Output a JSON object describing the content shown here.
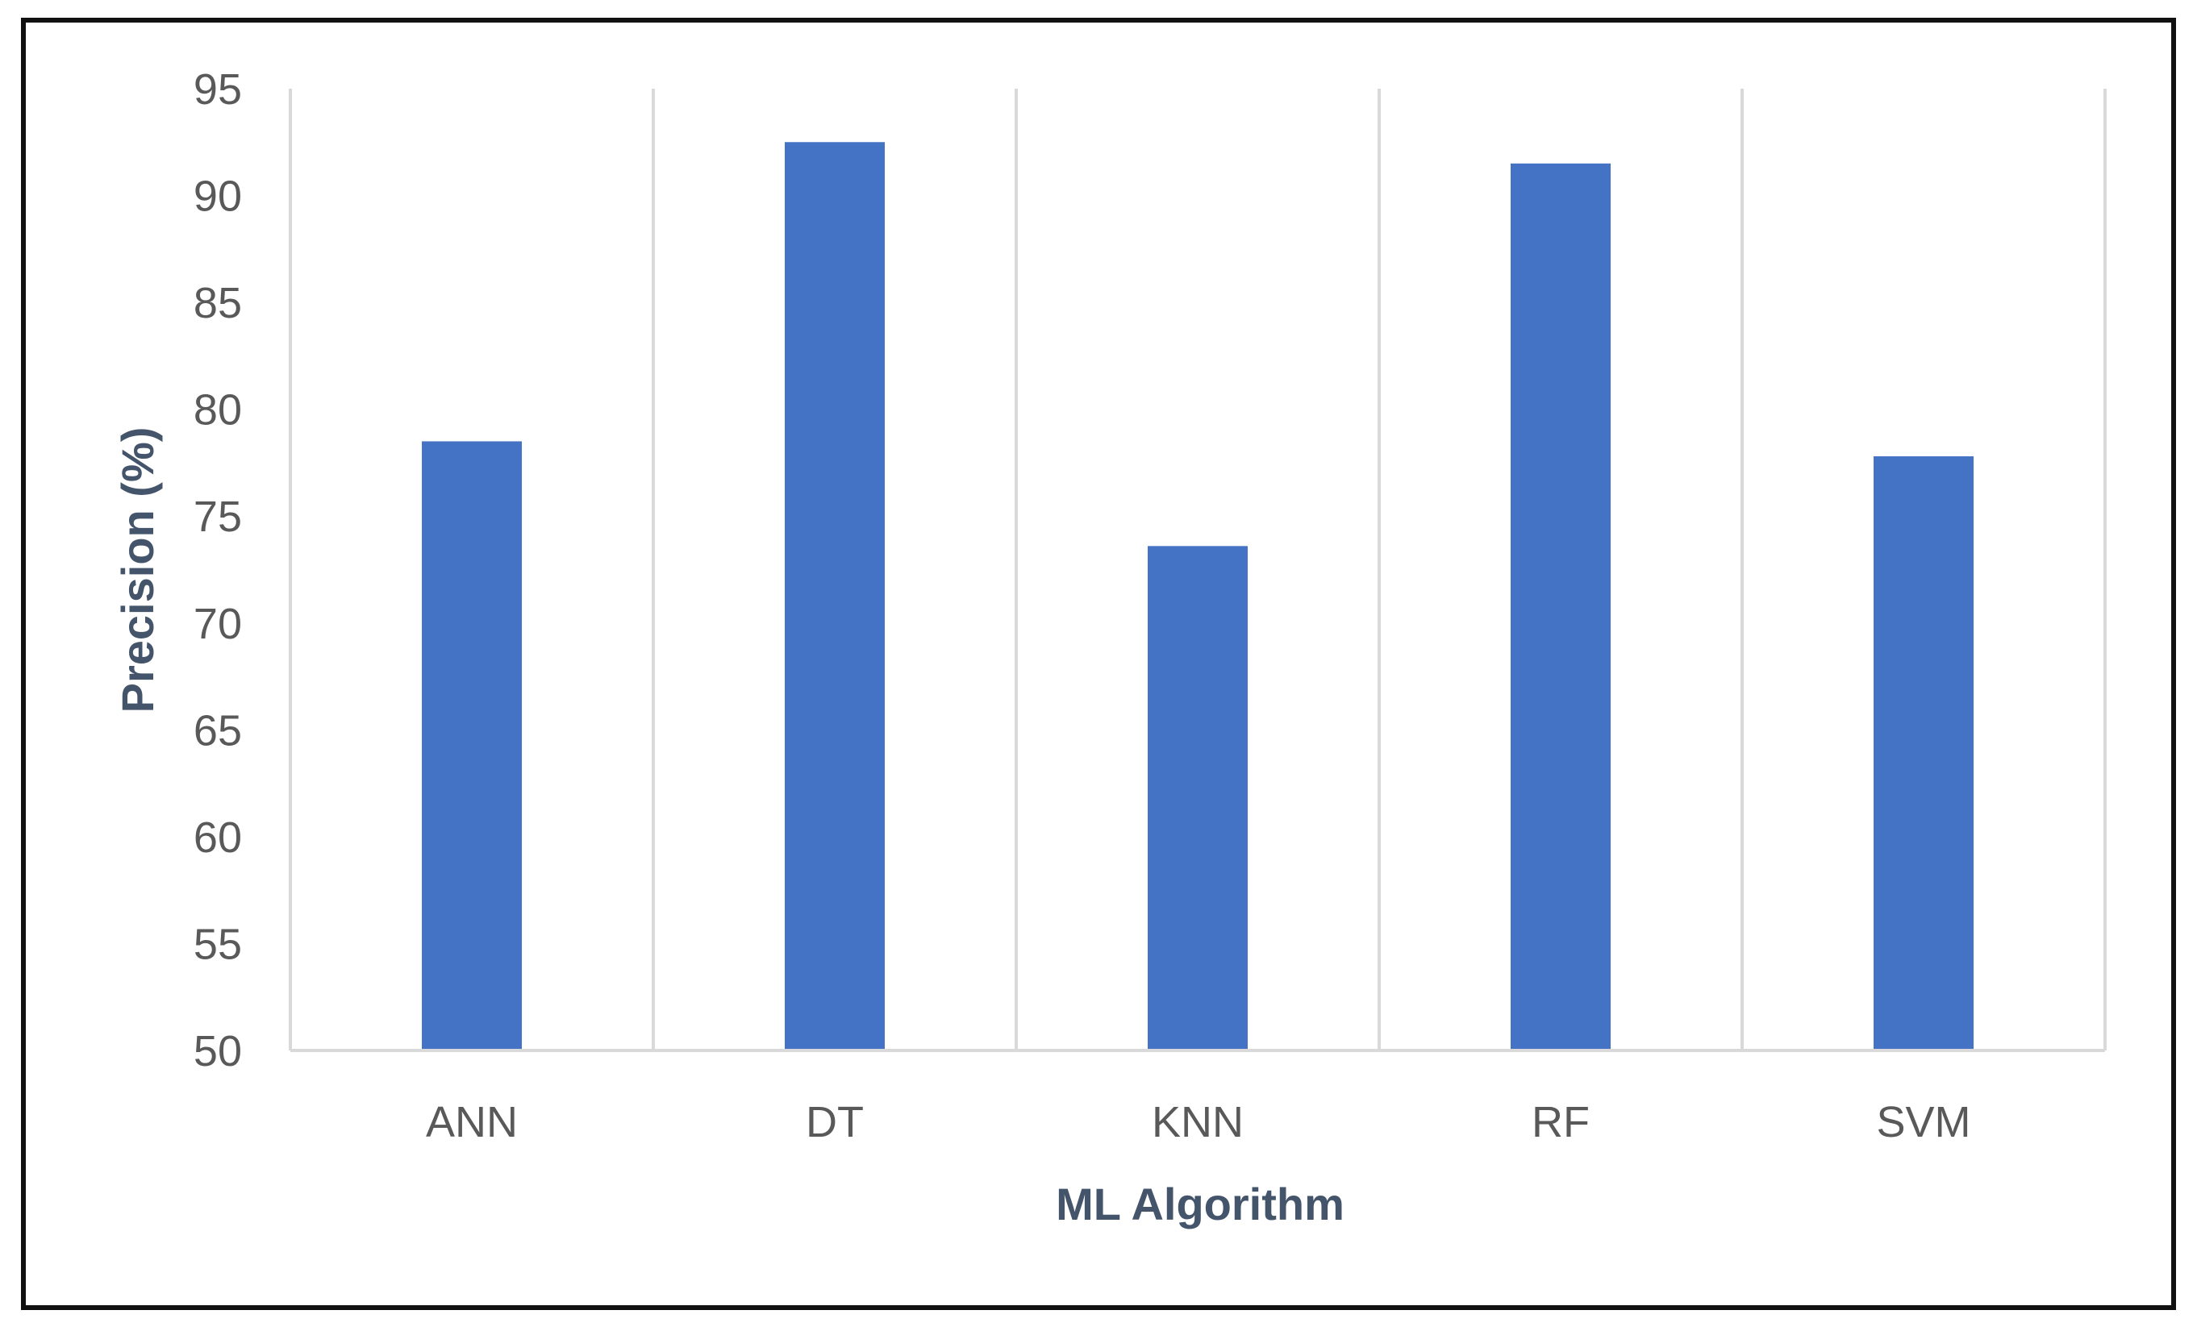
{
  "chart_data": {
    "type": "bar",
    "categories": [
      "ANN",
      "DT",
      "KNN",
      "RF",
      "SVM"
    ],
    "values": [
      78.5,
      92.5,
      73.6,
      91.5,
      77.8
    ],
    "xlabel": "ML Algorithm",
    "ylabel": "Precision (%)",
    "ylim": [
      50,
      95
    ],
    "yticks": [
      50,
      55,
      60,
      65,
      70,
      75,
      80,
      85,
      90,
      95
    ],
    "grid": "vertical",
    "legend": "none",
    "bar_color": "#4472C4",
    "gridline_color": "#D9D9D9"
  }
}
